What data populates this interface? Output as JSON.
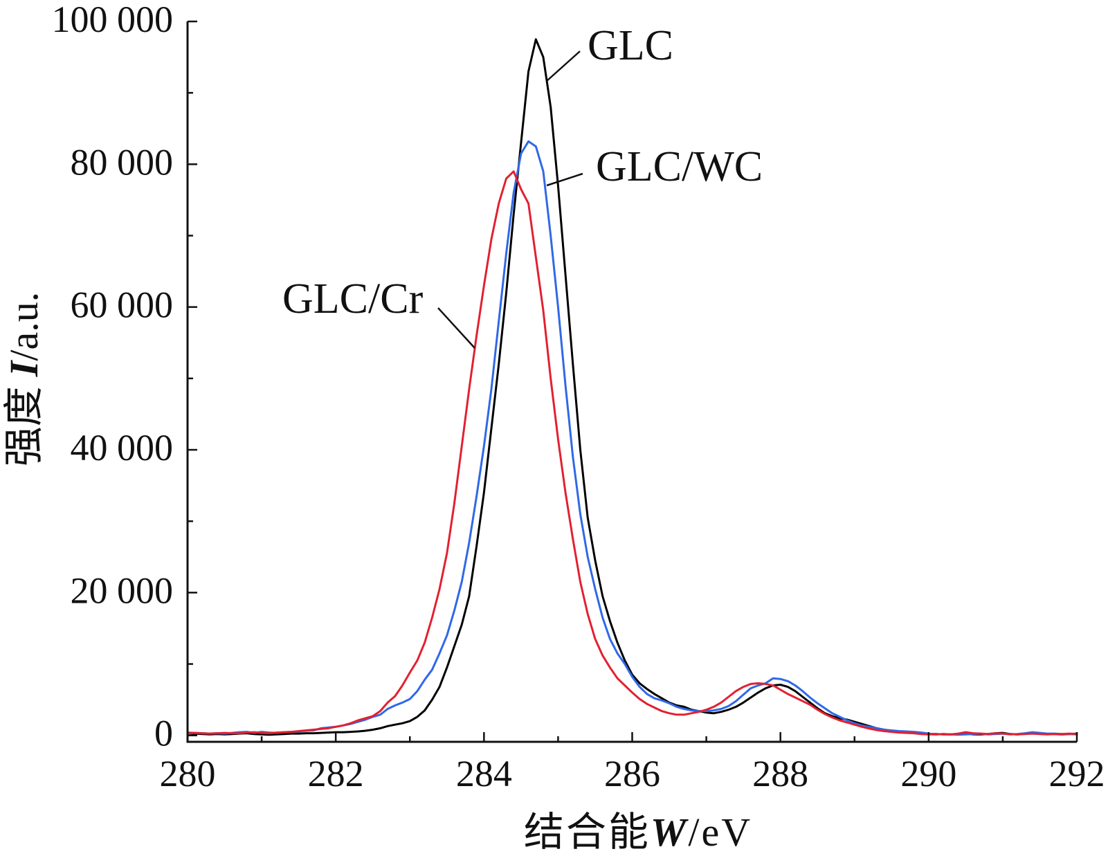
{
  "chart_data": {
    "type": "line",
    "xlim": [
      280,
      292
    ],
    "ylim": [
      -900,
      100000
    ],
    "grid": false,
    "xlabel": {
      "text": "结合能",
      "symbol": "W",
      "unit": "/eV"
    },
    "ylabel": {
      "text": "强度",
      "symbol": "I",
      "unit": "/a.u."
    },
    "xticks": [
      {
        "value": 280,
        "label": "280"
      },
      {
        "value": 282,
        "label": "282"
      },
      {
        "value": 284,
        "label": "284"
      },
      {
        "value": 286,
        "label": "286"
      },
      {
        "value": 288,
        "label": "288"
      },
      {
        "value": 290,
        "label": "290"
      },
      {
        "value": 292,
        "label": "292"
      }
    ],
    "yticks": [
      {
        "value": 0,
        "label": "0"
      },
      {
        "value": 20000,
        "label": "20 000"
      },
      {
        "value": 40000,
        "label": "40 000"
      },
      {
        "value": 60000,
        "label": "60 000"
      },
      {
        "value": 80000,
        "label": "80 000"
      },
      {
        "value": 100000,
        "label": "100 000"
      }
    ],
    "x": [
      280,
      280.1,
      280.2,
      280.3,
      280.4,
      280.5,
      280.6,
      280.7,
      280.8,
      280.9,
      281,
      281.1,
      281.2,
      281.3,
      281.4,
      281.5,
      281.6,
      281.7,
      281.8,
      281.9,
      282,
      282.1,
      282.2,
      282.3,
      282.4,
      282.5,
      282.6,
      282.7,
      282.8,
      282.9,
      283,
      283.1,
      283.2,
      283.3,
      283.4,
      283.5,
      283.6,
      283.7,
      283.8,
      283.9,
      284,
      284.1,
      284.2,
      284.3,
      284.4,
      284.5,
      284.6,
      284.7,
      284.8,
      284.9,
      285,
      285.1,
      285.2,
      285.3,
      285.4,
      285.5,
      285.6,
      285.7,
      285.8,
      285.9,
      286,
      286.1,
      286.2,
      286.3,
      286.4,
      286.5,
      286.6,
      286.7,
      286.8,
      286.9,
      287,
      287.1,
      287.2,
      287.3,
      287.4,
      287.5,
      287.6,
      287.7,
      287.8,
      287.9,
      288,
      288.1,
      288.2,
      288.3,
      288.4,
      288.5,
      288.6,
      288.7,
      288.8,
      288.9,
      289,
      289.1,
      289.2,
      289.3,
      289.4,
      289.5,
      289.6,
      289.7,
      289.8,
      289.9,
      290,
      290.1,
      290.2,
      290.3,
      290.4,
      290.5,
      290.6,
      290.7,
      290.8,
      290.9,
      291,
      291.1,
      291.2,
      291.3,
      291.4,
      291.5,
      291.6,
      291.7,
      291.8,
      291.9,
      292
    ],
    "series": [
      {
        "name": "GLC",
        "color": "#000000",
        "values": [
          300,
          250,
          200,
          150,
          200,
          150,
          200,
          250,
          300,
          200,
          150,
          100,
          150,
          200,
          250,
          250,
          300,
          300,
          350,
          400,
          450,
          450,
          500,
          550,
          650,
          800,
          1000,
          1300,
          1500,
          1700,
          2000,
          2600,
          3500,
          5000,
          6800,
          9500,
          12500,
          15500,
          19500,
          26500,
          34000,
          43000,
          52000,
          62000,
          73000,
          83000,
          93000,
          97500,
          95000,
          88000,
          77000,
          64500,
          52000,
          40000,
          30500,
          24500,
          19500,
          16000,
          13000,
          10500,
          8500,
          7300,
          6500,
          5800,
          5200,
          4600,
          4200,
          4000,
          3600,
          3400,
          3200,
          3100,
          3300,
          3600,
          4000,
          4600,
          5300,
          6000,
          6600,
          7000,
          7100,
          6800,
          6200,
          5400,
          4600,
          3800,
          3100,
          2700,
          2400,
          2200,
          1900,
          1600,
          1300,
          1000,
          800,
          650,
          500,
          450,
          400,
          300,
          200,
          200,
          150,
          150,
          200,
          250,
          150,
          150,
          200,
          300,
          350,
          200,
          150,
          250,
          300,
          250,
          200,
          200,
          150,
          200,
          250
        ]
      },
      {
        "name": "GLC/WC",
        "color": "#2f68e8",
        "values": [
          400,
          350,
          300,
          250,
          300,
          250,
          350,
          450,
          500,
          350,
          500,
          400,
          350,
          450,
          500,
          550,
          650,
          700,
          1000,
          1100,
          1200,
          1400,
          1600,
          1900,
          2200,
          2600,
          2900,
          3700,
          4200,
          4600,
          5100,
          6200,
          7800,
          9200,
          11500,
          14000,
          17500,
          21500,
          27000,
          33500,
          40500,
          48500,
          58000,
          67500,
          76000,
          81500,
          83200,
          82500,
          79000,
          70000,
          60000,
          49000,
          39000,
          31000,
          25000,
          20500,
          16500,
          13500,
          11500,
          10000,
          8200,
          6800,
          5800,
          5200,
          4900,
          4500,
          4000,
          3700,
          3500,
          3400,
          3400,
          3500,
          3700,
          4100,
          4800,
          5700,
          6600,
          7000,
          7300,
          8000,
          7900,
          7600,
          7000,
          6200,
          5300,
          4500,
          3800,
          3100,
          2600,
          2100,
          1700,
          1400,
          1200,
          1000,
          800,
          700,
          600,
          550,
          500,
          400,
          250,
          150,
          200,
          150,
          100,
          150,
          200,
          250,
          150,
          200,
          250,
          150,
          200,
          300,
          450,
          350,
          250,
          250,
          200,
          200,
          150
        ]
      },
      {
        "name": "GLC/Cr",
        "color": "#e22030",
        "values": [
          300,
          350,
          300,
          250,
          300,
          350,
          300,
          300,
          400,
          450,
          350,
          300,
          400,
          450,
          500,
          600,
          700,
          800,
          900,
          1000,
          1200,
          1400,
          1700,
          2100,
          2400,
          2700,
          3400,
          4600,
          5500,
          7000,
          8800,
          10500,
          13000,
          16500,
          20500,
          25500,
          32500,
          40500,
          48500,
          56000,
          63000,
          69500,
          74500,
          78000,
          79000,
          76500,
          74500,
          67000,
          59500,
          50000,
          41500,
          34000,
          27500,
          21500,
          17000,
          13500,
          11200,
          9500,
          8000,
          7000,
          6000,
          5100,
          4400,
          3900,
          3400,
          3100,
          2900,
          2900,
          3100,
          3300,
          3600,
          4000,
          4600,
          5400,
          6200,
          6800,
          7200,
          7300,
          7200,
          7000,
          6400,
          5800,
          5300,
          4800,
          4300,
          3600,
          3000,
          2500,
          2100,
          1800,
          1500,
          1200,
          950,
          750,
          600,
          500,
          400,
          350,
          300,
          200,
          150,
          150,
          200,
          150,
          250,
          450,
          300,
          250,
          200,
          300,
          250,
          200,
          150,
          200,
          250,
          200,
          150,
          200,
          200,
          250,
          200
        ]
      }
    ]
  }
}
